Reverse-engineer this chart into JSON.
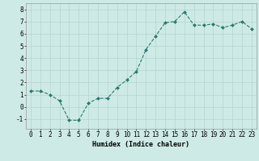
{
  "x": [
    0,
    1,
    2,
    3,
    4,
    5,
    6,
    7,
    8,
    9,
    10,
    11,
    12,
    13,
    14,
    15,
    16,
    17,
    18,
    19,
    20,
    21,
    22,
    23
  ],
  "y": [
    1.3,
    1.3,
    1.0,
    0.5,
    -1.1,
    -1.1,
    0.3,
    0.7,
    0.7,
    1.6,
    2.2,
    2.9,
    4.7,
    5.8,
    6.9,
    7.0,
    7.8,
    6.7,
    6.7,
    6.8,
    6.5,
    6.7,
    7.0,
    6.4
  ],
  "line_color": "#2a7a6f",
  "marker": "D",
  "marker_size": 2.0,
  "bg_color": "#ceeae6",
  "grid_color": "#b8d8d4",
  "xlabel": "Humidex (Indice chaleur)",
  "ylim": [
    -1.8,
    8.5
  ],
  "xlim": [
    -0.5,
    23.5
  ],
  "yticks": [
    -1,
    0,
    1,
    2,
    3,
    4,
    5,
    6,
    7,
    8
  ],
  "xticks": [
    0,
    1,
    2,
    3,
    4,
    5,
    6,
    7,
    8,
    9,
    10,
    11,
    12,
    13,
    14,
    15,
    16,
    17,
    18,
    19,
    20,
    21,
    22,
    23
  ],
  "xlabel_fontsize": 6.0,
  "tick_fontsize": 5.5
}
